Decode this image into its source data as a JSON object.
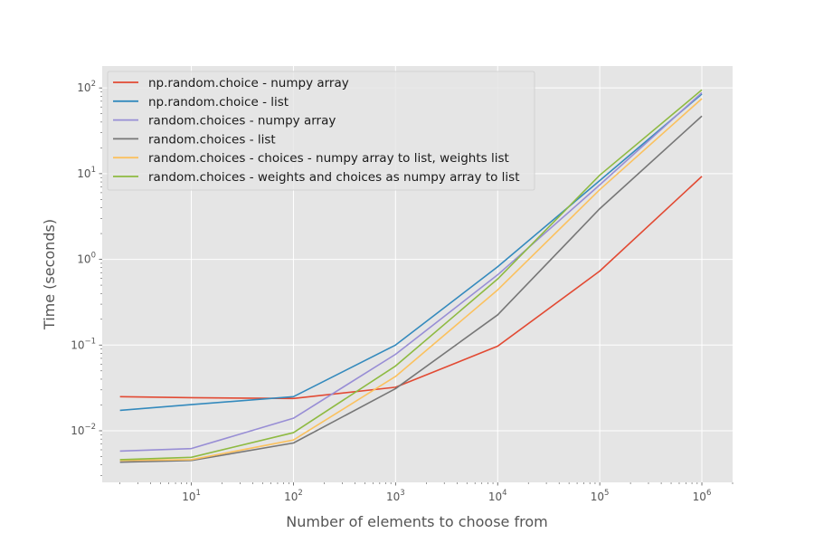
{
  "chart_data": {
    "type": "line",
    "title": "",
    "xlabel": "Number of elements to choose from",
    "ylabel": "Time (seconds)",
    "xscale": "log",
    "yscale": "log",
    "xlim": [
      1.34,
      2000000
    ],
    "ylim": [
      0.0025,
      180
    ],
    "grid": true,
    "legend_position": "top-left",
    "x_ticks": [
      {
        "value": 10,
        "base": "10",
        "exp": "1"
      },
      {
        "value": 100,
        "base": "10",
        "exp": "2"
      },
      {
        "value": 1000,
        "base": "10",
        "exp": "3"
      },
      {
        "value": 10000,
        "base": "10",
        "exp": "4"
      },
      {
        "value": 100000,
        "base": "10",
        "exp": "5"
      },
      {
        "value": 1000000,
        "base": "10",
        "exp": "6"
      }
    ],
    "y_ticks": [
      {
        "value": 0.01,
        "base": "10",
        "exp": "−2"
      },
      {
        "value": 0.1,
        "base": "10",
        "exp": "−1"
      },
      {
        "value": 1,
        "base": "10",
        "exp": "0"
      },
      {
        "value": 10,
        "base": "10",
        "exp": "1"
      },
      {
        "value": 100,
        "base": "10",
        "exp": "2"
      }
    ],
    "x": [
      2,
      10,
      100,
      1000,
      10000,
      100000,
      1000000
    ],
    "series": [
      {
        "name": "np.random.choice - numpy array",
        "color": "#E24A33",
        "values": [
          0.025,
          0.0243,
          0.0238,
          0.0322,
          0.097,
          0.73,
          9.3
        ]
      },
      {
        "name": "np.random.choice - list",
        "color": "#348ABD",
        "values": [
          0.0173,
          0.0202,
          0.025,
          0.1,
          0.82,
          8.3,
          85
        ]
      },
      {
        "name": "random.choices - numpy array",
        "color": "#988ED5",
        "values": [
          0.0058,
          0.0062,
          0.014,
          0.078,
          0.66,
          7.4,
          88
        ]
      },
      {
        "name": "random.choices - list",
        "color": "#777777",
        "values": [
          0.0043,
          0.0045,
          0.0072,
          0.031,
          0.225,
          3.9,
          47
        ]
      },
      {
        "name": "random.choices - choices - numpy array to list, weights list",
        "color": "#FBC15E",
        "values": [
          0.0045,
          0.0046,
          0.0078,
          0.043,
          0.44,
          6.5,
          75
        ]
      },
      {
        "name": "random.choices - weights and choices as numpy array to list",
        "color": "#8EBA42",
        "values": [
          0.0046,
          0.0049,
          0.0095,
          0.057,
          0.59,
          9.6,
          95
        ]
      }
    ]
  }
}
